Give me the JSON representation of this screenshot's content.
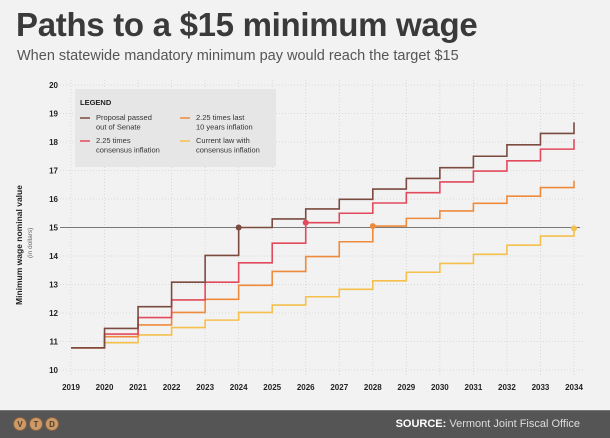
{
  "header": {
    "title": "Paths to a $15 minimum wage",
    "subtitle": "When statewide mandatory minimum pay would reach the target $15"
  },
  "footer": {
    "source_label": "SOURCE:",
    "source_text": "Vermont Joint Fiscal Office",
    "logo_letters": [
      "V",
      "T",
      "D"
    ]
  },
  "chart_data": {
    "type": "line",
    "step": true,
    "title": "",
    "ylabel": "Minimum wage nominal value",
    "ylabel_note": "(in dollars)",
    "xlabel": "",
    "ylim": [
      10,
      20
    ],
    "yticks": [
      10,
      11,
      12,
      13,
      14,
      15,
      16,
      17,
      18,
      19,
      20
    ],
    "x": [
      2019,
      2020,
      2021,
      2022,
      2023,
      2024,
      2025,
      2026,
      2027,
      2028,
      2029,
      2030,
      2031,
      2032,
      2033,
      2034
    ],
    "grid": true,
    "reference_line": 15,
    "legend": {
      "title": "LEGEND",
      "placement": "top-left"
    },
    "series": [
      {
        "name": "Proposal passed out of Senate",
        "color": "#7b4b3f",
        "marker_year": 2024,
        "values": [
          10.78,
          11.46,
          12.22,
          13.08,
          14.02,
          15.0,
          15.3,
          15.65,
          15.99,
          16.35,
          16.72,
          17.1,
          17.5,
          17.9,
          18.3,
          18.69
        ]
      },
      {
        "name": "2.25 times consensus inflation",
        "color": "#e24a5c",
        "marker_year": 2026,
        "values": [
          10.78,
          11.26,
          11.84,
          12.46,
          13.08,
          13.76,
          14.45,
          15.17,
          15.5,
          15.86,
          16.22,
          16.6,
          16.98,
          17.34,
          17.75,
          18.1
        ]
      },
      {
        "name": "2.25 times last 10 years inflation",
        "color": "#ee8a3c",
        "marker_year": 2028,
        "values": [
          10.78,
          11.17,
          11.58,
          12.02,
          12.48,
          12.97,
          13.46,
          13.98,
          14.5,
          15.05,
          15.32,
          15.58,
          15.85,
          16.1,
          16.4,
          16.64
        ]
      },
      {
        "name": "Current law with consensus inflation",
        "color": "#f6c04c",
        "marker_year": 2034,
        "values": [
          10.78,
          10.96,
          11.23,
          11.49,
          11.75,
          12.02,
          12.28,
          12.57,
          12.83,
          13.13,
          13.43,
          13.74,
          14.06,
          14.38,
          14.7,
          14.97
        ]
      }
    ]
  }
}
